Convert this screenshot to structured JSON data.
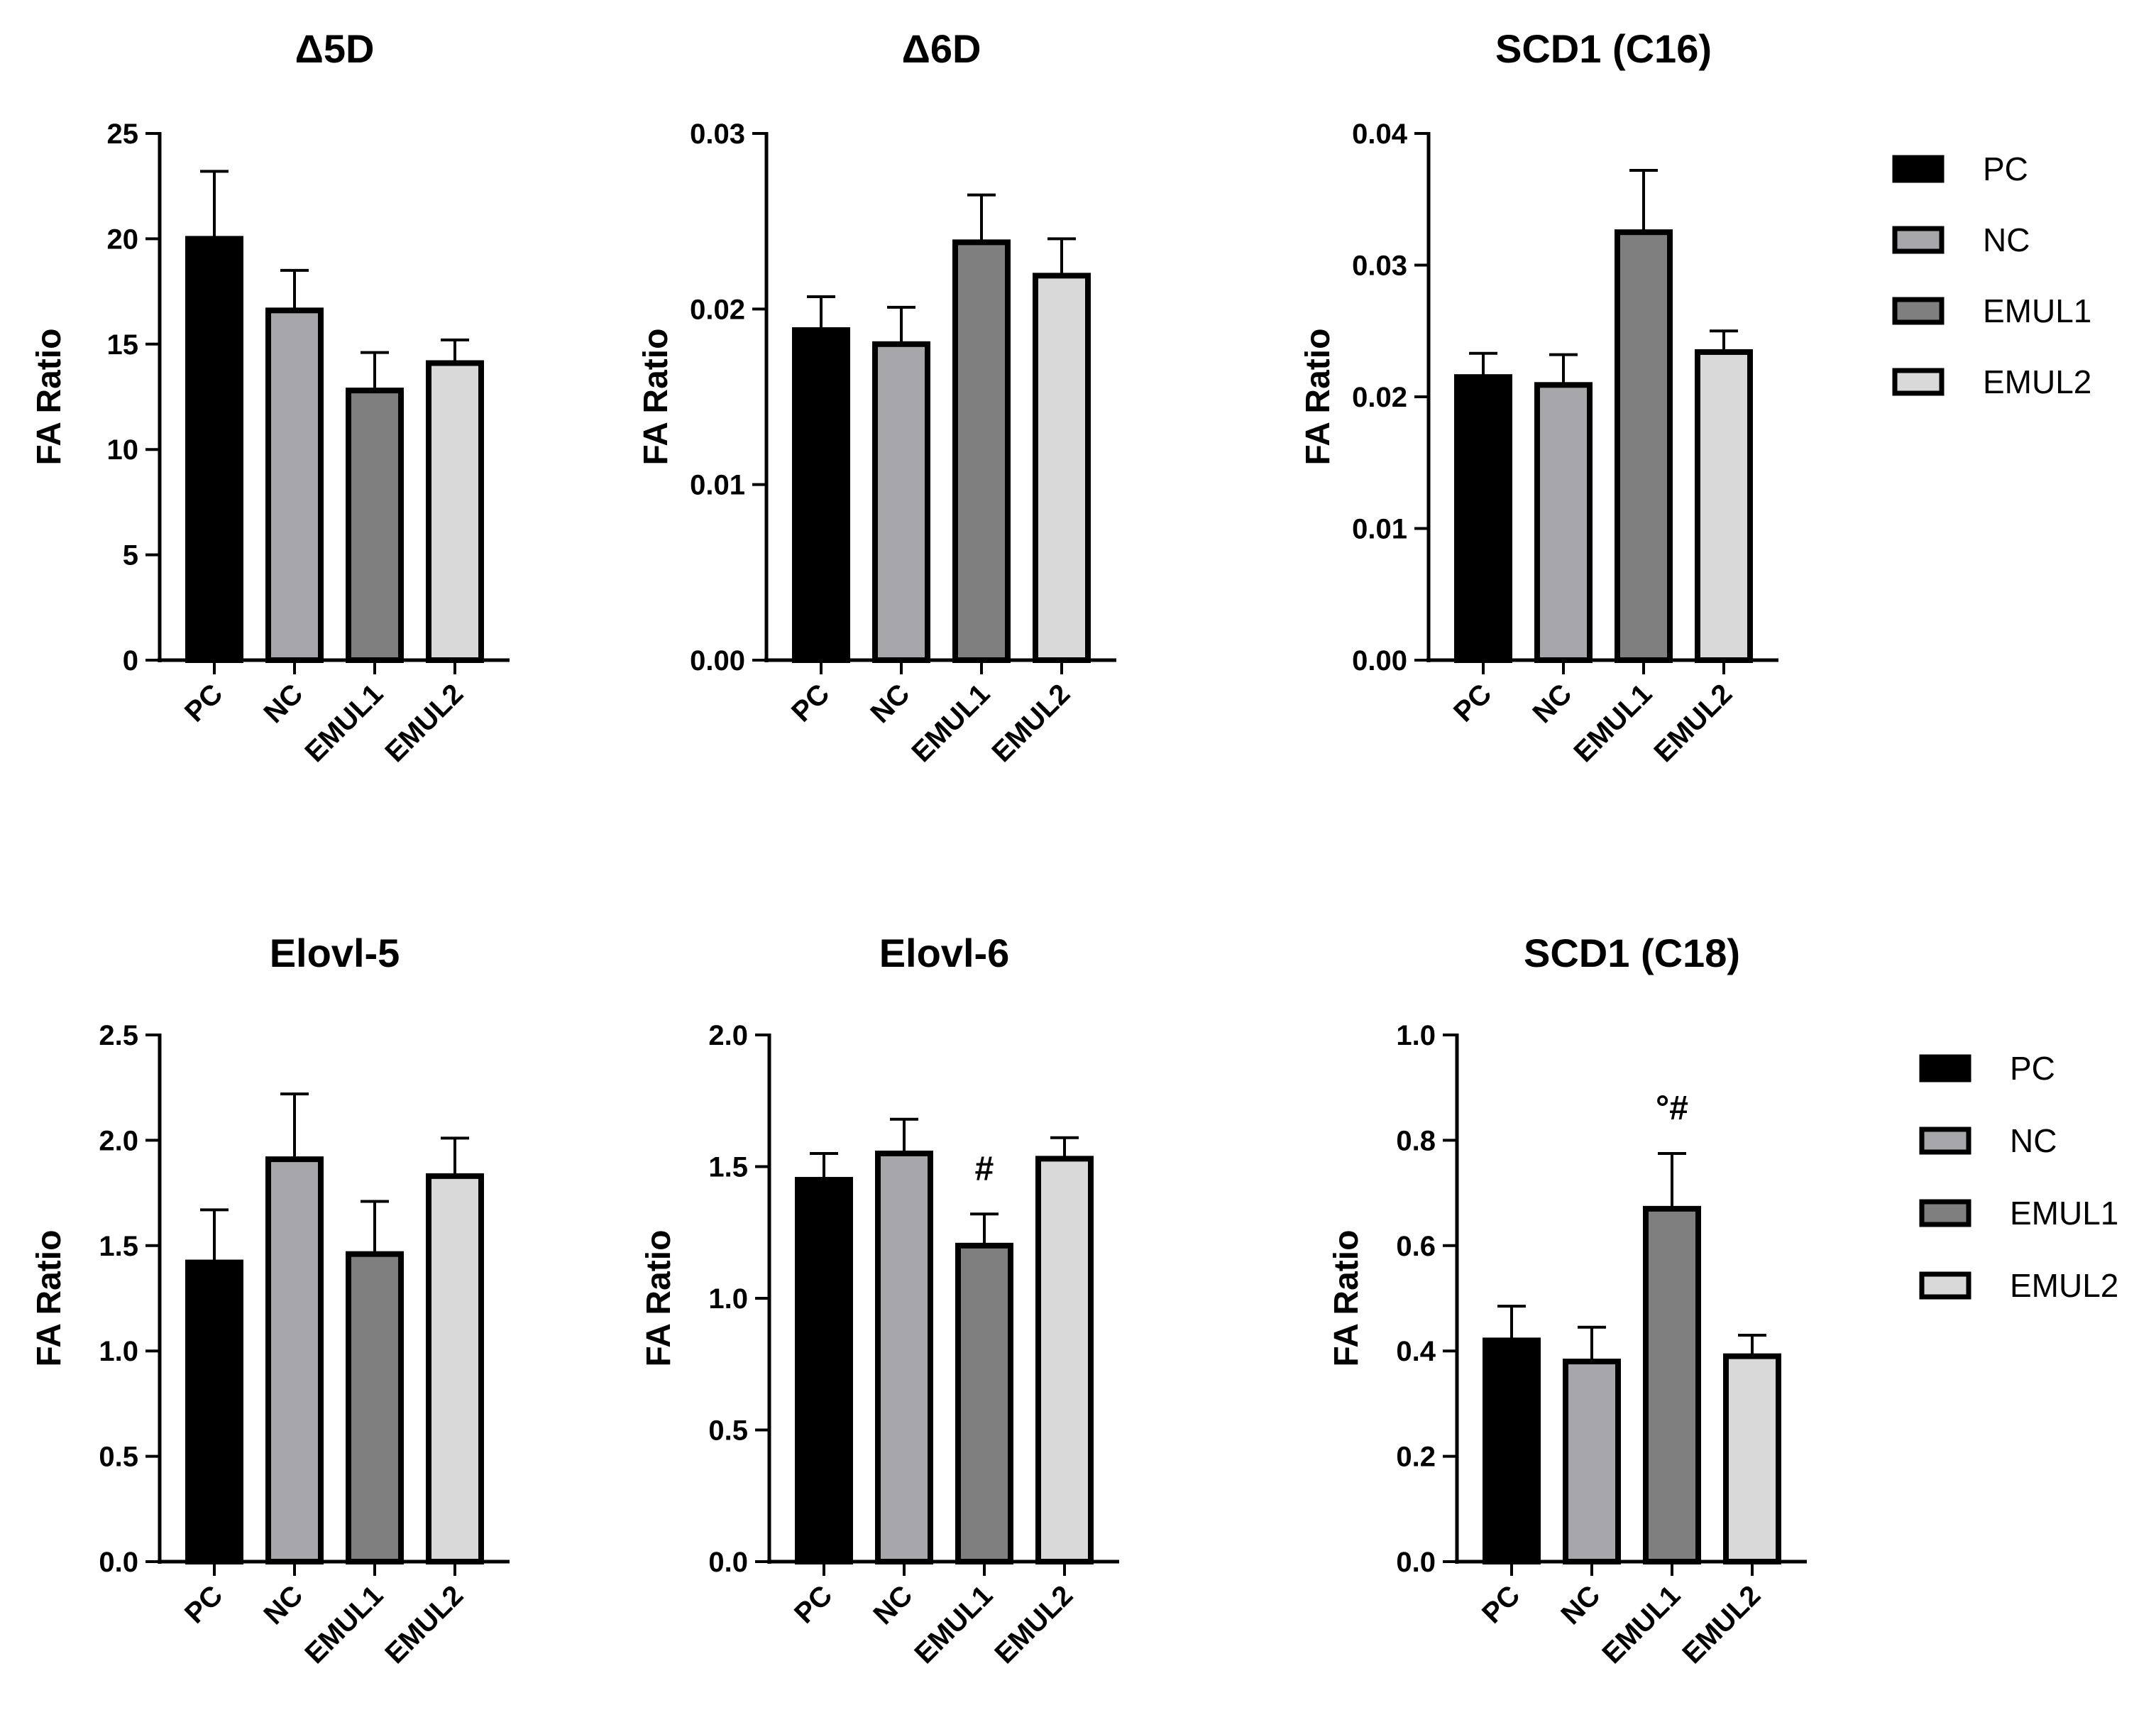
{
  "figure": {
    "legends": [
      {
        "entries": [
          "PC",
          "NC",
          "EMUL1",
          "EMUL2"
        ]
      },
      {
        "entries": [
          "PC",
          "NC",
          "EMUL1",
          "EMUL2"
        ]
      }
    ]
  },
  "colors": {
    "PC": "#000000",
    "NC": "#a6a6ab",
    "EMUL1": "#7f7f7f",
    "EMUL2": "#d9d9d9",
    "edge": "#000000"
  },
  "chart_data": [
    {
      "type": "bar",
      "title": "Δ5D",
      "ylabel": "FA Ratio",
      "categories": [
        "PC",
        "NC",
        "EMUL1",
        "EMUL2"
      ],
      "values": [
        20.0,
        16.6,
        12.8,
        14.1
      ],
      "errors": [
        3.2,
        1.9,
        1.8,
        1.1
      ],
      "ylim": [
        0,
        25
      ],
      "yticks": [
        0,
        5,
        10,
        15,
        20,
        25
      ],
      "ytick_labels": [
        "0",
        "5",
        "10",
        "15",
        "20",
        "25"
      ],
      "annotations": []
    },
    {
      "type": "bar",
      "title": "Δ6D",
      "ylabel": "FA Ratio",
      "categories": [
        "PC",
        "NC",
        "EMUL1",
        "EMUL2"
      ],
      "values": [
        0.0188,
        0.018,
        0.0238,
        0.0219
      ],
      "errors": [
        0.0019,
        0.0021,
        0.0027,
        0.0021
      ],
      "ylim": [
        0,
        0.03
      ],
      "yticks": [
        0,
        0.01,
        0.02,
        0.03
      ],
      "ytick_labels": [
        "0.00",
        "0.01",
        "0.02",
        "0.03"
      ],
      "annotations": []
    },
    {
      "type": "bar",
      "title": "SCD1 (C16)",
      "ylabel": "FA Ratio",
      "categories": [
        "PC",
        "NC",
        "EMUL1",
        "EMUL2"
      ],
      "values": [
        0.0215,
        0.0209,
        0.0325,
        0.0234
      ],
      "errors": [
        0.0018,
        0.0023,
        0.0047,
        0.0016
      ],
      "ylim": [
        0,
        0.04
      ],
      "yticks": [
        0,
        0.01,
        0.02,
        0.03,
        0.04
      ],
      "ytick_labels": [
        "0.00",
        "0.01",
        "0.02",
        "0.03",
        "0.04"
      ],
      "annotations": []
    },
    {
      "type": "bar",
      "title": "Elovl-5",
      "ylabel": "FA Ratio",
      "categories": [
        "PC",
        "NC",
        "EMUL1",
        "EMUL2"
      ],
      "values": [
        1.42,
        1.91,
        1.46,
        1.83
      ],
      "errors": [
        0.25,
        0.31,
        0.25,
        0.18
      ],
      "ylim": [
        0,
        2.5
      ],
      "yticks": [
        0,
        0.5,
        1.0,
        1.5,
        2.0,
        2.5
      ],
      "ytick_labels": [
        "0.0",
        "0.5",
        "1.0",
        "1.5",
        "2.0",
        "2.5"
      ],
      "annotations": []
    },
    {
      "type": "bar",
      "title": "Elovl-6",
      "ylabel": "FA Ratio",
      "categories": [
        "PC",
        "NC",
        "EMUL1",
        "EMUL2"
      ],
      "values": [
        1.45,
        1.55,
        1.2,
        1.53
      ],
      "errors": [
        0.1,
        0.13,
        0.12,
        0.08
      ],
      "ylim": [
        0,
        2.0
      ],
      "yticks": [
        0,
        0.5,
        1.0,
        1.5,
        2.0
      ],
      "ytick_labels": [
        "0.0",
        "0.5",
        "1.0",
        "1.5",
        "2.0"
      ],
      "annotations": [
        {
          "category": "EMUL1",
          "text": "#"
        }
      ]
    },
    {
      "type": "bar",
      "title": "SCD1 (C18)",
      "ylabel": "FA Ratio",
      "categories": [
        "PC",
        "NC",
        "EMUL1",
        "EMUL2"
      ],
      "values": [
        0.42,
        0.38,
        0.67,
        0.39
      ],
      "errors": [
        0.065,
        0.065,
        0.105,
        0.04
      ],
      "ylim": [
        0,
        1.0
      ],
      "yticks": [
        0,
        0.2,
        0.4,
        0.6,
        0.8,
        1.0
      ],
      "ytick_labels": [
        "0.0",
        "0.2",
        "0.4",
        "0.6",
        "0.8",
        "1.0"
      ],
      "annotations": [
        {
          "category": "EMUL1",
          "text": "°#"
        }
      ]
    }
  ]
}
